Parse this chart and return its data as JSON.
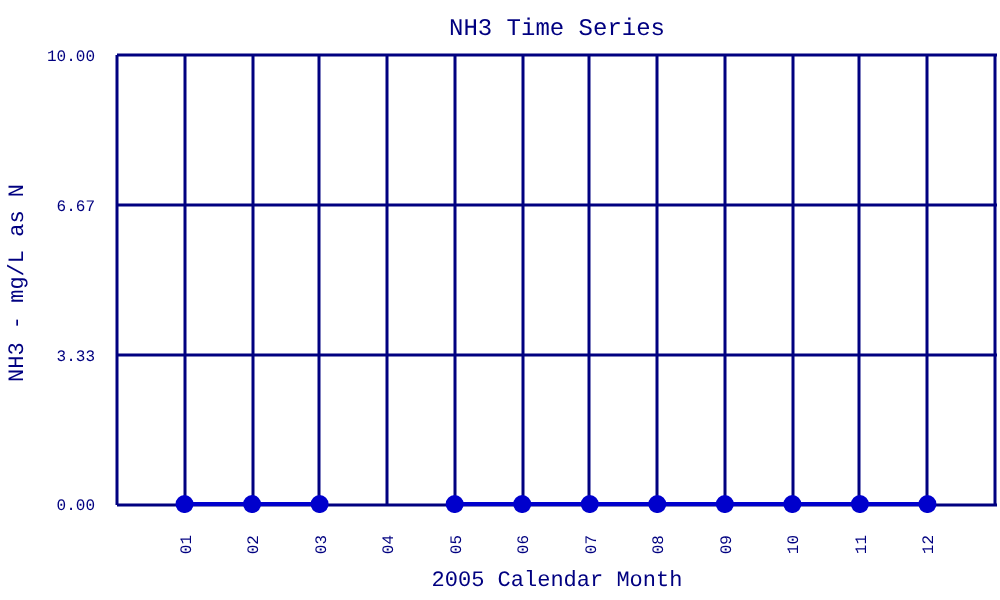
{
  "chart_data": {
    "type": "line",
    "title": "NH3 Time Series",
    "xlabel": "2005 Calendar Month",
    "ylabel": "NH3 - mg/L as N",
    "categories": [
      "01",
      "02",
      "03",
      "04",
      "05",
      "06",
      "07",
      "08",
      "09",
      "10",
      "11",
      "12"
    ],
    "series": [
      {
        "color": "#0000cc",
        "values": [
          0,
          0,
          0,
          null,
          0,
          0,
          0,
          0,
          0,
          0,
          0,
          0
        ]
      }
    ],
    "ylim": [
      0,
      10
    ],
    "yticks": [
      {
        "value": 0,
        "label": "0.00"
      },
      {
        "value": 3.33,
        "label": "3.33"
      },
      {
        "value": 6.67,
        "label": "6.67"
      },
      {
        "value": 10,
        "label": "10.00"
      }
    ],
    "grid": true,
    "marker": "circle",
    "line_style": "solid"
  }
}
